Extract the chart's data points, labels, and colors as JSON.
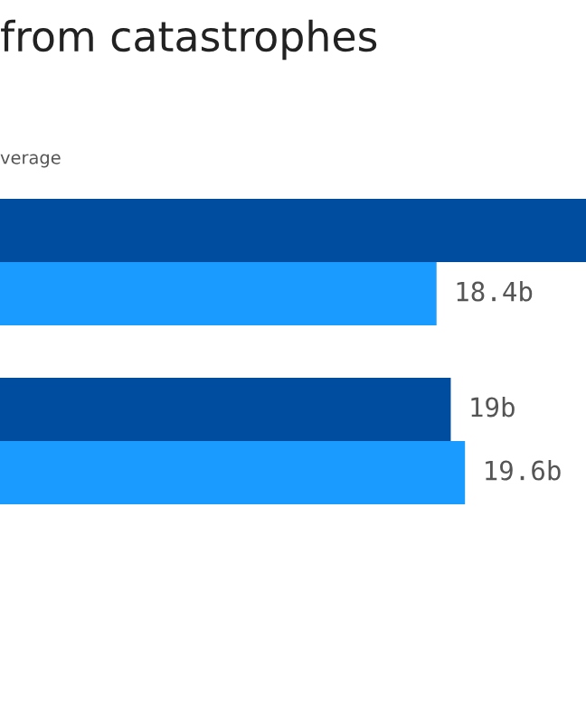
{
  "chart_data": {
    "type": "bar",
    "orientation": "horizontal",
    "title": "from catastrophes",
    "annotations": [
      "verage"
    ],
    "categories": [
      null,
      null
    ],
    "series": [
      {
        "color": "#004c9e",
        "values": [
          24.7,
          19
        ],
        "value_labels": [
          null,
          "19b"
        ]
      },
      {
        "color": "#1a9bff",
        "values": [
          18.4,
          19.6
        ],
        "value_labels": [
          "18.4b",
          "19.6b"
        ]
      }
    ],
    "xlim": [
      0,
      24.7
    ],
    "grid": false,
    "legend": false
  }
}
